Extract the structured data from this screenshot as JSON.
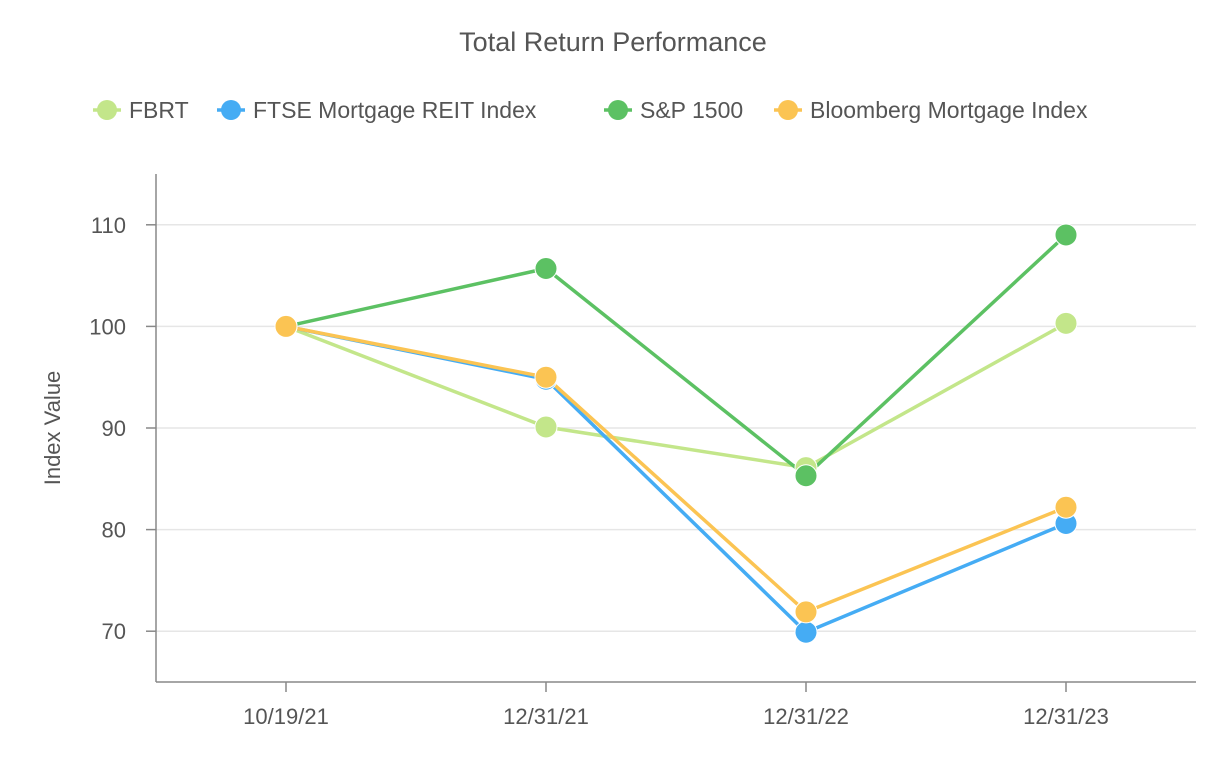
{
  "chart_data": {
    "type": "line",
    "title": "Total Return Performance",
    "xlabel": "",
    "ylabel": "Index Value",
    "categories": [
      "10/19/21",
      "12/31/21",
      "12/31/22",
      "12/31/23"
    ],
    "ylim": [
      65,
      115
    ],
    "yticks": [
      70,
      80,
      90,
      100,
      110
    ],
    "grid": true,
    "legend_position": "top-center",
    "series": [
      {
        "name": "FBRT",
        "color": "#c3e68a",
        "values": [
          100,
          90.1,
          86.1,
          100.3
        ]
      },
      {
        "name": "FTSE Mortgage REIT Index",
        "color": "#45acf4",
        "values": [
          100,
          94.8,
          69.9,
          80.6
        ]
      },
      {
        "name": "S&P 1500",
        "color": "#5cc163",
        "values": [
          100,
          105.7,
          85.3,
          109.0
        ]
      },
      {
        "name": "Bloomberg Mortgage Index",
        "color": "#fbc453",
        "values": [
          100,
          95.0,
          71.9,
          82.2
        ]
      }
    ]
  }
}
